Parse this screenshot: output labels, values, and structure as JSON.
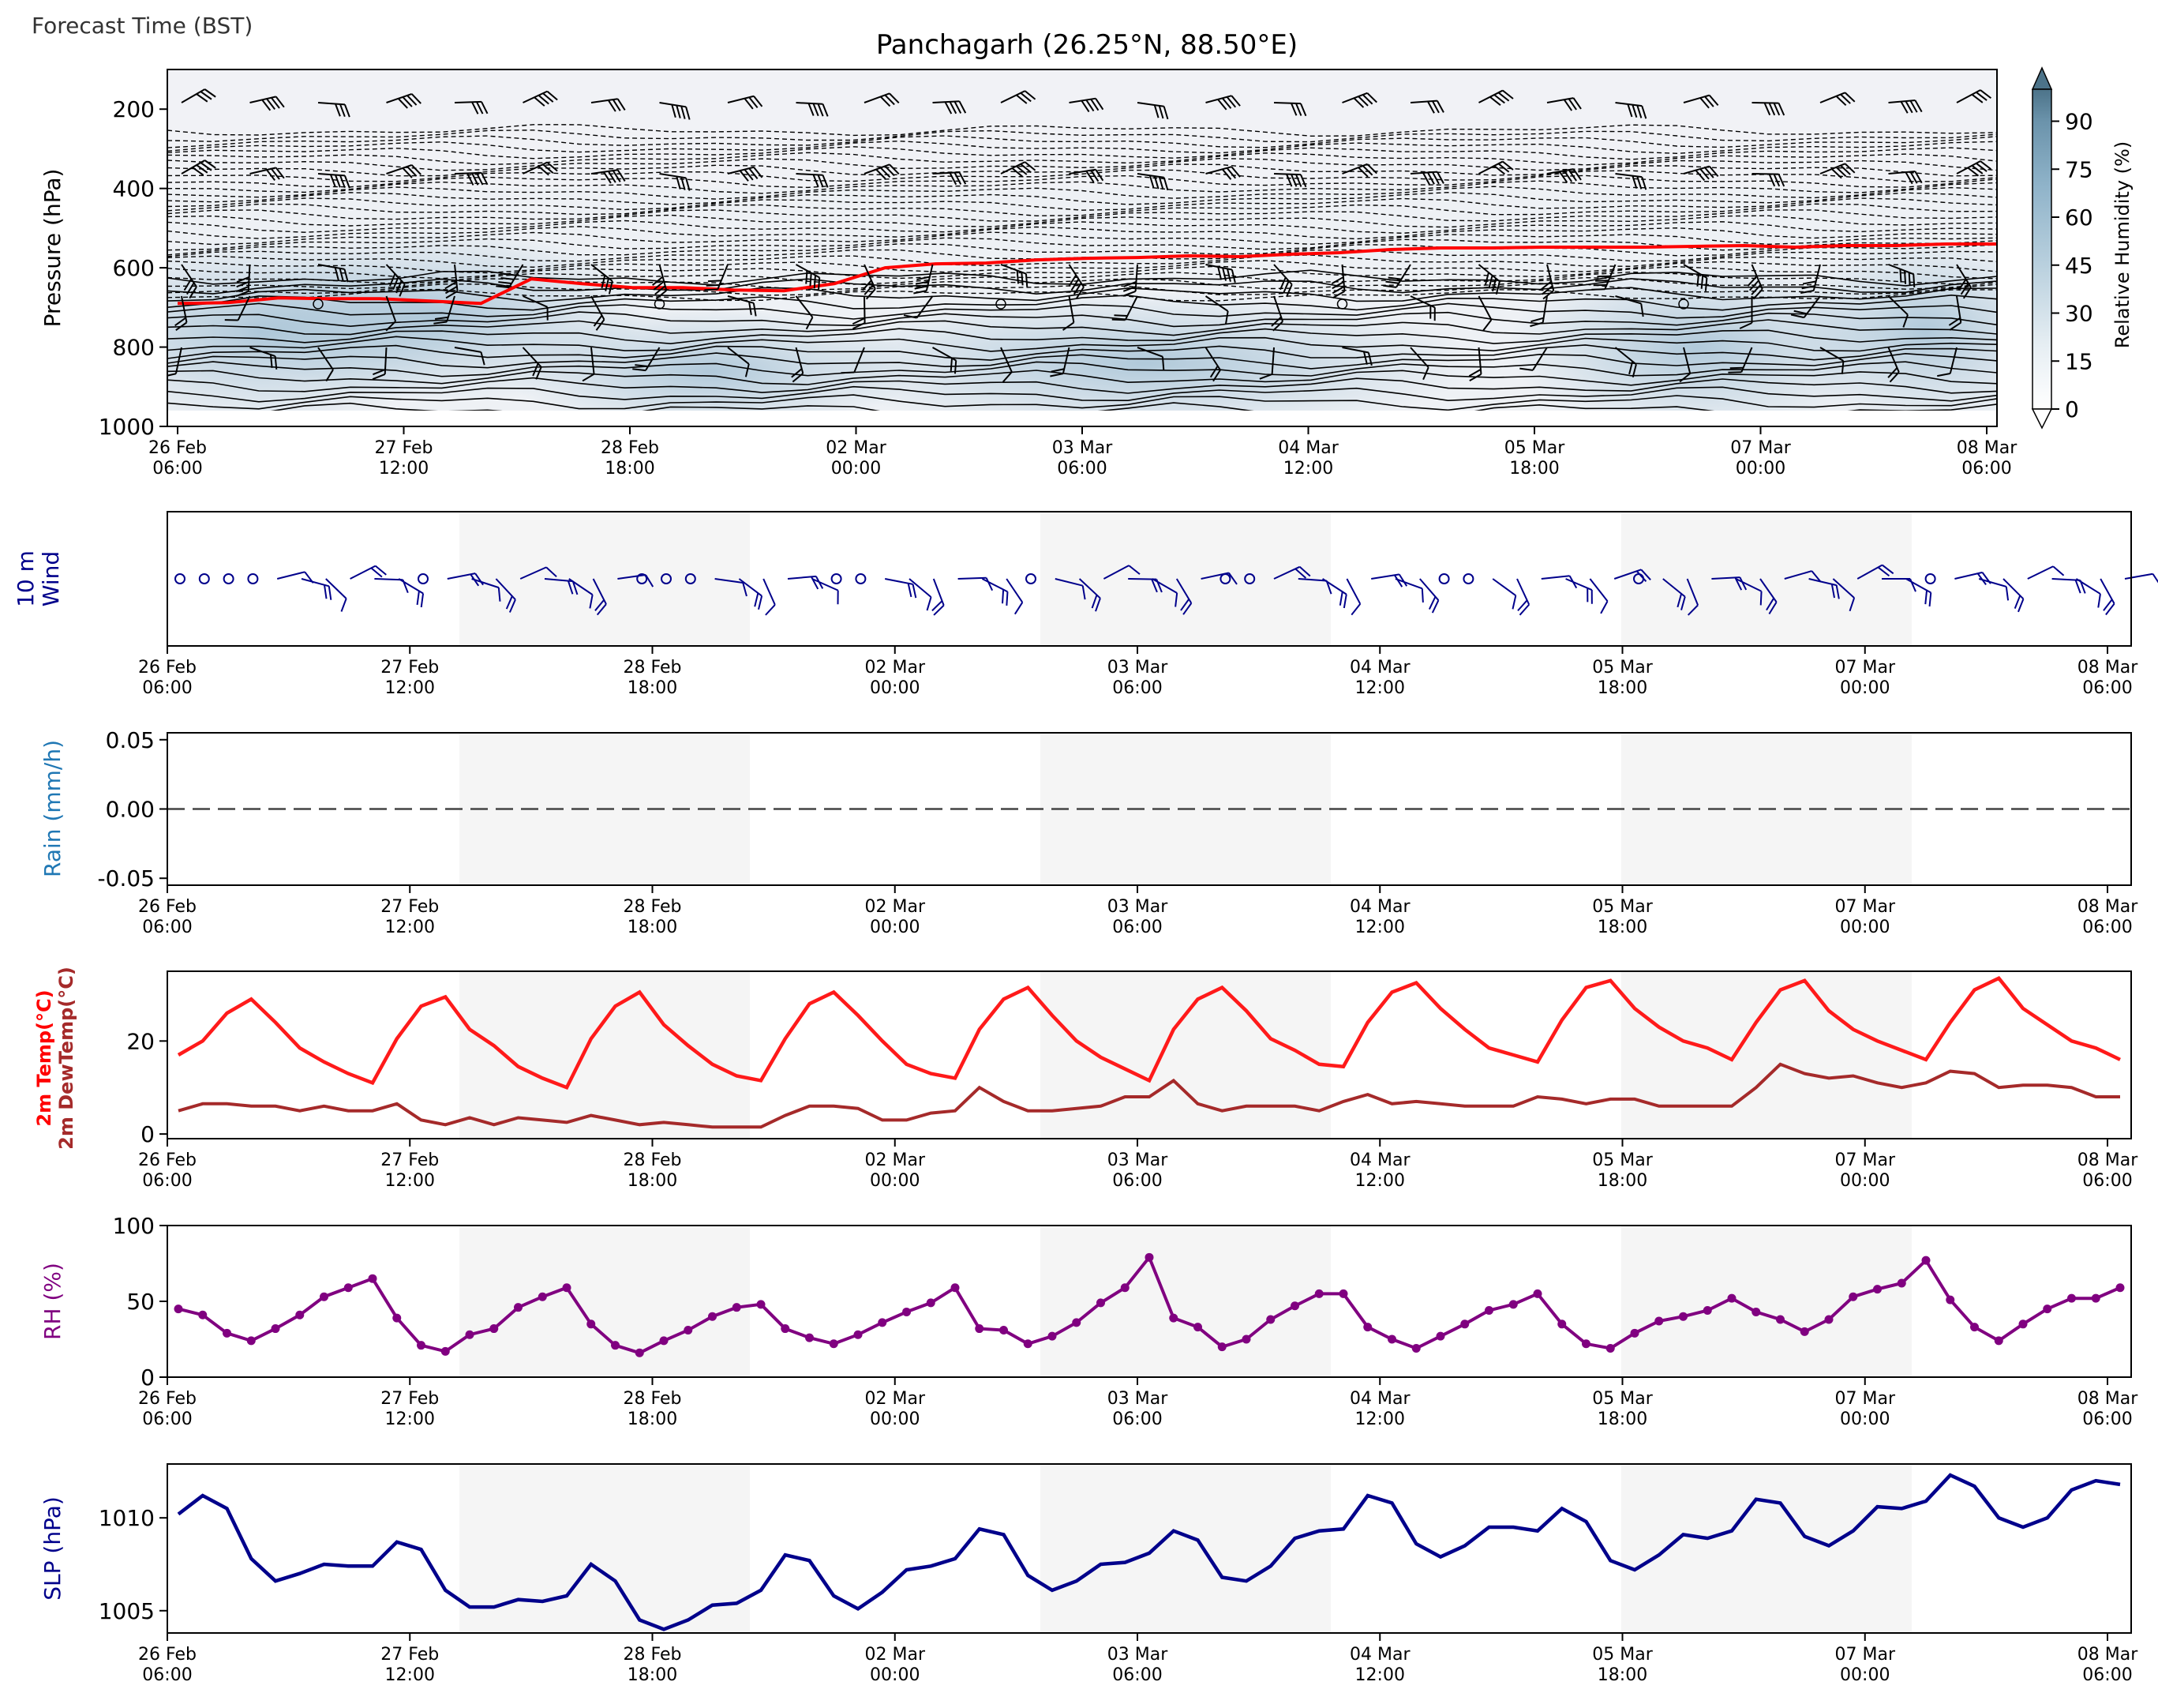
{
  "header": {
    "forecast_time_label": "Forecast Time (BST)",
    "title": "Panchagarh (26.25°N, 88.50°E)"
  },
  "colors": {
    "temp": "#ff1a1a",
    "dewtemp": "#a52a2a",
    "rh": "#800080",
    "slp": "#00008b",
    "wind": "#00008b",
    "rain_label": "#1f77b4",
    "freezing_level": "#ff0000",
    "day_shade": "#f5f5f5",
    "rh_colormap": [
      "#ffffff",
      "#e6eef3",
      "#b9d0de",
      "#8fb3c9",
      "#6b93ab",
      "#4c7389"
    ]
  },
  "x_tick_labels": [
    [
      "26 Feb",
      "06:00"
    ],
    [
      "27 Feb",
      "12:00"
    ],
    [
      "28 Feb",
      "18:00"
    ],
    [
      "02 Mar",
      "00:00"
    ],
    [
      "03 Mar",
      "06:00"
    ],
    [
      "04 Mar",
      "12:00"
    ],
    [
      "05 Mar",
      "18:00"
    ],
    [
      "07 Mar",
      "00:00"
    ],
    [
      "08 Mar",
      "06:00"
    ]
  ],
  "chart_data": [
    {
      "type": "heatmap",
      "name": "profile",
      "title": "Panchagarh (26.25°N, 88.50°E)",
      "ylabel": "Pressure (hPa)",
      "ylim": [
        1000,
        100
      ],
      "yticks": [
        200,
        400,
        600,
        800,
        1000
      ],
      "colorbar": {
        "label": "Relative Humidity (%)",
        "ticks": [
          0,
          15,
          30,
          45,
          60,
          75,
          90
        ]
      },
      "freezing_level_hPa": [
        690,
        688,
        676,
        678,
        678,
        684,
        690,
        628,
        640,
        650,
        650,
        656,
        658,
        640,
        600,
        590,
        588,
        580,
        576,
        574,
        570,
        572,
        566,
        562,
        554,
        550,
        550,
        548,
        548,
        548,
        546,
        544,
        548,
        544,
        544,
        540,
        540
      ]
    },
    {
      "type": "scatter",
      "name": "wind",
      "ylabel": "10 m Wind"
    },
    {
      "type": "line",
      "name": "rain",
      "ylabel": "Rain (mm/h)",
      "ylim": [
        -0.055,
        0.055
      ],
      "yticks": [
        "0.05",
        "0.00",
        "-0.05"
      ],
      "values": [
        0,
        0
      ]
    },
    {
      "type": "line",
      "name": "temperature",
      "ylabel": [
        "2m Temp(°C)",
        "2m DewTemp(°C)"
      ],
      "ylim": [
        -1,
        35
      ],
      "yticks": [
        "0",
        "20"
      ],
      "series": [
        {
          "name": "2m Temp(°C)",
          "values": [
            17,
            20,
            26,
            29,
            24,
            18.5,
            15.5,
            13,
            11,
            20.5,
            27.5,
            29.5,
            22.5,
            19,
            14.5,
            12,
            10,
            20.5,
            27.5,
            30.5,
            23.5,
            19,
            15,
            12.5,
            11.5,
            20.5,
            28,
            30.5,
            25.5,
            20,
            15,
            13,
            12,
            22.5,
            29,
            31.5,
            25.5,
            20,
            16.5,
            14,
            11.5,
            22.5,
            29,
            31.5,
            26.5,
            20.5,
            18,
            15,
            14.5,
            24,
            30.5,
            32.5,
            27,
            22.5,
            18.5,
            17,
            15.5,
            24.5,
            31.5,
            33,
            27,
            23,
            20,
            18.5,
            16,
            24,
            31,
            33,
            26.5,
            22.5,
            20,
            18,
            16,
            24,
            31,
            33.5,
            27,
            23.5,
            20,
            18.5,
            16
          ]
        },
        {
          "name": "2m DewTemp(°C)",
          "values": [
            5,
            6.5,
            6.5,
            6,
            6,
            5,
            6,
            5,
            5,
            6.5,
            3,
            2,
            3.5,
            2,
            3.5,
            3,
            2.5,
            4,
            3,
            2,
            2.5,
            2,
            1.5,
            1.5,
            1.5,
            4,
            6,
            6,
            5.5,
            3,
            3,
            4.5,
            5,
            10,
            7,
            5,
            5,
            5.5,
            6,
            8,
            8,
            11.5,
            6.5,
            5,
            6,
            6,
            6,
            5,
            7,
            8.5,
            6.5,
            7,
            6.5,
            6,
            6,
            6,
            8,
            7.5,
            6.5,
            7.5,
            7.5,
            6,
            6,
            6,
            6,
            10,
            15,
            13,
            12,
            12.5,
            11,
            10,
            11,
            13.5,
            13,
            10,
            10.5,
            10.5,
            10,
            8,
            8
          ]
        }
      ]
    },
    {
      "type": "line",
      "name": "rh",
      "ylabel": "RH (%)",
      "ylim": [
        0,
        100
      ],
      "yticks": [
        "0",
        "50",
        "100"
      ],
      "values": [
        45,
        41,
        29,
        24,
        32,
        41,
        53,
        59,
        65,
        39,
        21,
        17,
        28,
        32,
        46,
        53,
        59,
        35,
        21,
        16,
        24,
        31,
        40,
        46,
        48,
        32,
        26,
        22,
        28,
        36,
        43,
        49,
        59,
        32,
        31,
        22,
        27,
        36,
        49,
        59,
        79,
        39,
        33,
        20,
        25,
        38,
        47,
        55,
        55,
        33,
        25,
        19,
        27,
        35,
        44,
        48,
        55,
        35,
        22,
        19,
        29,
        37,
        40,
        44,
        52,
        43,
        38,
        30,
        38,
        53,
        58,
        62,
        77,
        51,
        33,
        24,
        35,
        45,
        52,
        52,
        59
      ]
    },
    {
      "type": "line",
      "name": "slp",
      "ylabel": "SLP (hPa)",
      "ylim": [
        1003.8,
        1012.9
      ],
      "yticks": [
        "1005",
        "1010"
      ],
      "values": [
        1010.2,
        1011.2,
        1010.5,
        1007.8,
        1006.6,
        1007,
        1007.5,
        1007.4,
        1007.4,
        1008.7,
        1008.3,
        1006.1,
        1005.2,
        1005.2,
        1005.6,
        1005.5,
        1005.8,
        1007.5,
        1006.6,
        1004.5,
        1004,
        1004.5,
        1005.3,
        1005.4,
        1006.1,
        1008,
        1007.7,
        1005.8,
        1005.1,
        1006,
        1007.2,
        1007.4,
        1007.8,
        1009.4,
        1009.1,
        1006.9,
        1006.1,
        1006.6,
        1007.5,
        1007.6,
        1008.1,
        1009.3,
        1008.8,
        1006.8,
        1006.6,
        1007.4,
        1008.9,
        1009.3,
        1009.4,
        1011.2,
        1010.8,
        1008.6,
        1007.9,
        1008.5,
        1009.5,
        1009.5,
        1009.3,
        1010.5,
        1009.8,
        1007.7,
        1007.2,
        1008,
        1009.1,
        1008.9,
        1009.3,
        1011,
        1010.8,
        1009,
        1008.5,
        1009.3,
        1010.6,
        1010.5,
        1010.9,
        1012.3,
        1011.7,
        1010,
        1009.5,
        1010,
        1011.5,
        1012,
        1011.8
      ]
    }
  ]
}
